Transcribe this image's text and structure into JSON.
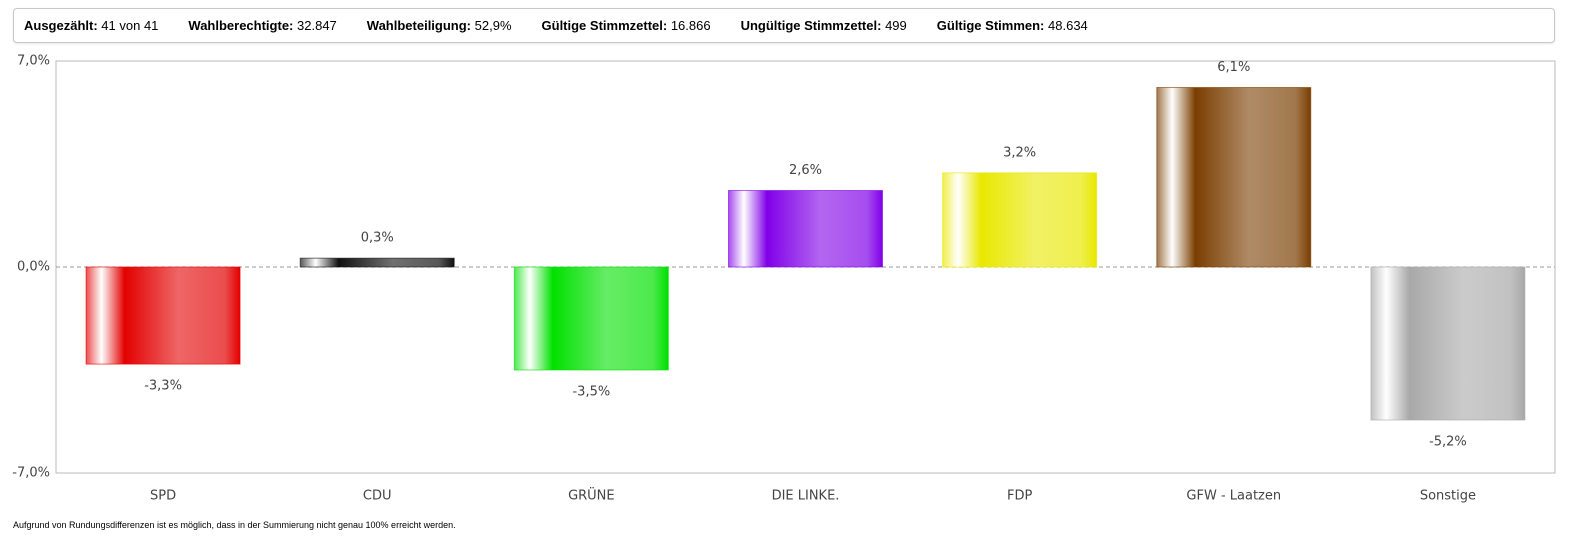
{
  "header": {
    "stats": [
      {
        "label": "Ausgezählt:",
        "value": "41 von 41"
      },
      {
        "label": "Wahlberechtigte:",
        "value": "32.847"
      },
      {
        "label": "Wahlbeteiligung:",
        "value": "52,9%"
      },
      {
        "label": "Gültige Stimmzettel:",
        "value": "16.866"
      },
      {
        "label": "Ungültige Stimmzettel:",
        "value": "499"
      },
      {
        "label": "Gültige Stimmen:",
        "value": "48.634"
      }
    ]
  },
  "chart_data": {
    "type": "bar",
    "categories": [
      "SPD",
      "CDU",
      "GRÜNE",
      "DIE LINKE.",
      "FDP",
      "GFW - Laatzen",
      "Sonstige"
    ],
    "values": [
      -3.3,
      0.3,
      -3.5,
      2.6,
      3.2,
      6.1,
      -5.2
    ],
    "value_labels": [
      "-3,3%",
      "0,3%",
      "-3,5%",
      "2,6%",
      "3,2%",
      "6,1%",
      "-5,2%"
    ],
    "colors": [
      "#e30000",
      "#111111",
      "#00e000",
      "#8000e8",
      "#e8e800",
      "#7a3e00",
      "#a8a8a8"
    ],
    "ylim": [
      -7,
      7
    ],
    "yticks": [
      {
        "value": -7,
        "label": "-7,0%"
      },
      {
        "value": 0,
        "label": "0,0%"
      },
      {
        "value": 7,
        "label": "7,0%"
      }
    ],
    "zero_line": true
  },
  "footnote": "Aufgrund von Rundungsdifferenzen ist es möglich, dass in der Summierung nicht genau 100% erreicht werden."
}
